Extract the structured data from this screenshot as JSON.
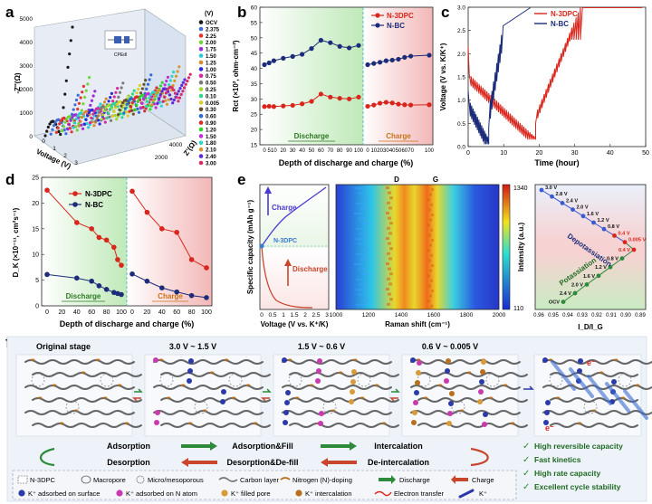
{
  "panels": {
    "a": "a",
    "b": "b",
    "c": "c",
    "d": "d",
    "e": "e",
    "f": "f"
  },
  "colors": {
    "n3dpc": "#d8261c",
    "nbc": "#1c2c7a",
    "discharge_bg": "#cfeec9",
    "charge_bg": "#f6c9c9",
    "schematic_bg": "#eef3f9"
  },
  "chart_data": [
    {
      "id": "a",
      "type": "scatter",
      "title": "",
      "zlabel": "-Z''(Ω)",
      "xlabel": "Voltage (V)",
      "ylabel": "Z'(Ω)",
      "z_ticks": [
        "0",
        "1000",
        "2000",
        "3000",
        "4000",
        "5000"
      ],
      "voltage_ticks": [
        "0",
        "1",
        "2",
        "3"
      ],
      "zre_ticks": [
        "2000",
        "4000"
      ],
      "legend_header": "(V)",
      "legend": [
        "OCV",
        "2.375",
        "2.25",
        "2.00",
        "1.75",
        "1.50",
        "1.25",
        "1.00",
        "0.75",
        "0.50",
        "0.25",
        "0.10",
        "0.005",
        "0.30",
        "0.60",
        "0.90",
        "1.20",
        "1.50",
        "1.80",
        "2.10",
        "2.40",
        "3.00"
      ],
      "legend_colors": [
        "#1a1a1a",
        "#3b6fd6",
        "#e3342f",
        "#6fd63b",
        "#9b2cd6",
        "#2ccbd6",
        "#d68a2c",
        "#2c2cd6",
        "#d62ca0",
        "#7a7a7a",
        "#a0d62c",
        "#2cd68a",
        "#d6cf2c",
        "#6b4f2c",
        "#2c6bd6",
        "#d62c2c",
        "#2cd62c",
        "#c12cd6",
        "#2cd6c4",
        "#d6962c",
        "#5a2cd6",
        "#d62c6b"
      ],
      "inset_label": "CPEdl",
      "note": "EIS Nyquist spectra at each voltage"
    },
    {
      "id": "b",
      "type": "line",
      "title": "",
      "ylabel": "Rct (×10², ohm·cm⁻²)",
      "xlabel": "Depth of discharge and charge (%)",
      "ylim": [
        15,
        60
      ],
      "y_ticks": [
        "15",
        "20",
        "25",
        "30",
        "35",
        "40",
        "45",
        "50",
        "55",
        "60"
      ],
      "x_ticks_discharge": [
        "0",
        "5",
        "10",
        "20",
        "30",
        "40",
        "50",
        "60",
        "70",
        "80",
        "90",
        "100"
      ],
      "x_ticks_charge": [
        "0",
        "10",
        "20",
        "30",
        "40",
        "50",
        "60",
        "70",
        "100"
      ],
      "region_labels": [
        "Discharge",
        "Charge"
      ],
      "discharge_x": [
        0,
        5,
        10,
        20,
        30,
        40,
        50,
        60,
        70,
        80,
        90,
        100
      ],
      "charge_x": [
        0,
        10,
        20,
        30,
        40,
        50,
        60,
        70,
        100
      ],
      "series": [
        {
          "name": "N-3DPC",
          "discharge": [
            27.5,
            27.6,
            27.5,
            27.7,
            27.9,
            28.4,
            29.2,
            31.6,
            30.6,
            30.2,
            30.0,
            30.6
          ],
          "charge": [
            27.6,
            28.0,
            28.6,
            28.9,
            28.7,
            28.3,
            28.1,
            28.0,
            28.1
          ]
        },
        {
          "name": "N-BC",
          "discharge": [
            41.2,
            41.8,
            42.5,
            43.3,
            43.9,
            44.6,
            46.5,
            49.2,
            48.4,
            47.2,
            46.7,
            47.5
          ],
          "charge": [
            41.2,
            41.6,
            42.0,
            42.5,
            42.7,
            43.0,
            43.6,
            44.0,
            44.3
          ]
        }
      ]
    },
    {
      "id": "c",
      "type": "line",
      "title": "",
      "ylabel": "Voltage (V vs. K/K⁺)",
      "xlabel": "Time (hour)",
      "xlim": [
        0,
        50
      ],
      "ylim": [
        0,
        3.0
      ],
      "x_ticks": [
        "0",
        "10",
        "20",
        "30",
        "40",
        "50"
      ],
      "y_ticks": [
        "0.0",
        "0.5",
        "1.0",
        "1.5",
        "2.0",
        "2.5",
        "3.0"
      ],
      "series": [
        {
          "name": "N-3DPC",
          "note": "GITT profile"
        },
        {
          "name": "N-BC",
          "note": "GITT profile"
        }
      ]
    },
    {
      "id": "d",
      "type": "line",
      "title": "",
      "ylabel": "D_K (×10⁻¹¹, cm²s⁻¹)",
      "xlabel": "Depth of discharge and charge (%)",
      "ylim": [
        0,
        25
      ],
      "y_ticks": [
        "0",
        "5",
        "10",
        "15",
        "20",
        "25"
      ],
      "x_ticks": [
        "0",
        "20",
        "40",
        "60",
        "80",
        "100"
      ],
      "region_labels": [
        "Discharge",
        "Charge"
      ],
      "discharge_x": [
        0,
        40,
        60,
        70,
        80,
        90,
        95,
        100
      ],
      "charge_x": [
        0,
        20,
        40,
        60,
        80,
        100
      ],
      "series": [
        {
          "name": "N-3DPC",
          "discharge": [
            22.5,
            16.2,
            15.0,
            13.3,
            12.8,
            11.4,
            9.0,
            7.9
          ],
          "charge": [
            22.3,
            18.2,
            15.0,
            14.3,
            9.0,
            7.4
          ]
        },
        {
          "name": "N-BC",
          "discharge": [
            6.1,
            5.4,
            4.8,
            3.9,
            3.2,
            2.6,
            2.4,
            2.2
          ],
          "charge": [
            6.2,
            4.8,
            3.5,
            2.7,
            2.0,
            1.6
          ]
        }
      ]
    },
    {
      "id": "e",
      "type": "heatmap",
      "title": "",
      "left": {
        "ylabel": "Specific capacity (mAh g⁻¹)",
        "xlabel": "Voltage (V vs. K⁺/K)",
        "x_ticks": [
          "0",
          "0.5",
          "1",
          "1.5",
          "2",
          "2.5",
          "3"
        ],
        "labels": [
          "Charge",
          "Discharge",
          "N-3DPC"
        ]
      },
      "middle": {
        "xlabel": "Raman shift (cm⁻¹)",
        "x_ticks": [
          "1000",
          "1200",
          "1400",
          "1600",
          "1800",
          "2000"
        ],
        "peak_labels": [
          "D",
          "G"
        ],
        "colorbar_label": "Intensity (a.u.)",
        "colorbar_min": "110",
        "colorbar_max": "1340"
      },
      "right": {
        "xlabel": "I_D/I_G",
        "x_ticks": [
          "0.96",
          "0.95",
          "0.94",
          "0.93",
          "0.92",
          "0.91",
          "0.90",
          "0.89"
        ],
        "region_labels": [
          "Depotassiation",
          "Potassiation"
        ],
        "upper_points": [
          "3.0 V",
          "2.8 V",
          "2.4 V",
          "2.0 V",
          "1.6 V",
          "1.2 V",
          "0.8 V",
          "0.4 V",
          "0.005 V"
        ],
        "lower_points": [
          "0.4 V",
          "0.8 V",
          "1.2 V",
          "1.6 V",
          "2.0 V",
          "2.4 V",
          "OCV"
        ]
      }
    }
  ],
  "schematic": {
    "stages": [
      "Original stage",
      "3.0 V ~ 1.5 V",
      "1.5 V ~ 0.6 V",
      "0.6 V ~ 0.005 V"
    ],
    "process_top": [
      "Adsorption",
      "Adsorption&Fill",
      "Intercalation"
    ],
    "process_bottom": [
      "Desorption",
      "Desorption&De-fill",
      "De-intercalation"
    ],
    "merits": [
      "High reversible capacity",
      "Fast kinetics",
      "High rate capacity",
      "Excellent cycle stability"
    ],
    "legend_row1": [
      "N-3DPC",
      "Macropore",
      "Micro/mesoporous",
      "Carbon layer",
      "Nitrogen (N)-doping",
      "Discharge",
      "Charge"
    ],
    "legend_row2": [
      "K⁺ adsorbed on surface",
      "K⁺ adsorbed on N atom",
      "K⁺ filled pore",
      "K⁺ intercalation",
      "Electron transfer",
      "K⁺"
    ],
    "electron_label": "e⁻"
  }
}
